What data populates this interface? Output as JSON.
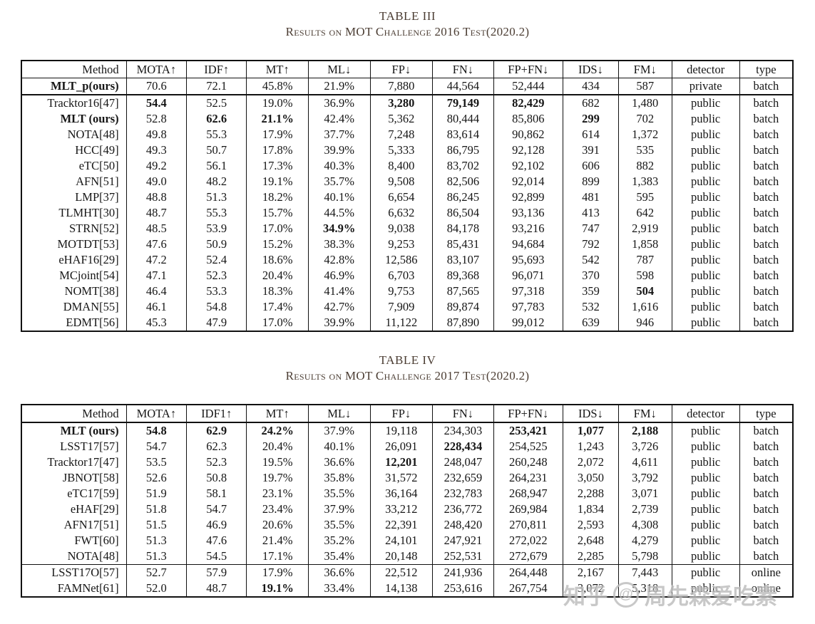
{
  "table3": {
    "title": "TABLE III",
    "caption": "Results on MOT Challenge 2016 Test(2020.2)",
    "columns": [
      "Method",
      "MOTA↑",
      "IDF↑",
      "MT↑",
      "ML↓",
      "FP↓",
      "FN↓",
      "FP+FN↓",
      "IDS↓",
      "FM↓",
      "detector",
      "type"
    ],
    "rows": [
      {
        "cells": [
          "MLT_p(ours)",
          "70.6",
          "72.1",
          "45.8%",
          "21.9%",
          "7,880",
          "44,564",
          "52,444",
          "434",
          "587",
          "private",
          "batch"
        ],
        "bold": [
          0
        ]
      },
      {
        "cells": [
          "Tracktor16[47]",
          "54.4",
          "52.5",
          "19.0%",
          "36.9%",
          "3,280",
          "79,149",
          "82,429",
          "682",
          "1,480",
          "public",
          "batch"
        ],
        "bold": [
          1,
          5,
          6,
          7
        ]
      },
      {
        "cells": [
          "MLT (ours)",
          "52.8",
          "62.6",
          "21.1%",
          "42.4%",
          "5,362",
          "80,444",
          "85,806",
          "299",
          "702",
          "public",
          "batch"
        ],
        "bold": [
          0,
          2,
          3,
          8
        ]
      },
      {
        "cells": [
          "NOTA[48]",
          "49.8",
          "55.3",
          "17.9%",
          "37.7%",
          "7,248",
          "83,614",
          "90,862",
          "614",
          "1,372",
          "public",
          "batch"
        ],
        "bold": []
      },
      {
        "cells": [
          "HCC[49]",
          "49.3",
          "50.7",
          "17.8%",
          "39.9%",
          "5,333",
          "86,795",
          "92,128",
          "391",
          "535",
          "public",
          "batch"
        ],
        "bold": []
      },
      {
        "cells": [
          "eTC[50]",
          "49.2",
          "56.1",
          "17.3%",
          "40.3%",
          "8,400",
          "83,702",
          "92,102",
          "606",
          "882",
          "public",
          "batch"
        ],
        "bold": []
      },
      {
        "cells": [
          "AFN[51]",
          "49.0",
          "48.2",
          "19.1%",
          "35.7%",
          "9,508",
          "82,506",
          "92,014",
          "899",
          "1,383",
          "public",
          "batch"
        ],
        "bold": []
      },
      {
        "cells": [
          "LMP[37]",
          "48.8",
          "51.3",
          "18.2%",
          "40.1%",
          "6,654",
          "86,245",
          "92,899",
          "481",
          "595",
          "public",
          "batch"
        ],
        "bold": []
      },
      {
        "cells": [
          "TLMHT[30]",
          "48.7",
          "55.3",
          "15.7%",
          "44.5%",
          "6,632",
          "86,504",
          "93,136",
          "413",
          "642",
          "public",
          "batch"
        ],
        "bold": []
      },
      {
        "cells": [
          "STRN[52]",
          "48.5",
          "53.9",
          "17.0%",
          "34.9%",
          "9,038",
          "84,178",
          "93,216",
          "747",
          "2,919",
          "public",
          "batch"
        ],
        "bold": [
          4
        ]
      },
      {
        "cells": [
          "MOTDT[53]",
          "47.6",
          "50.9",
          "15.2%",
          "38.3%",
          "9,253",
          "85,431",
          "94,684",
          "792",
          "1,858",
          "public",
          "batch"
        ],
        "bold": []
      },
      {
        "cells": [
          "eHAF16[29]",
          "47.2",
          "52.4",
          "18.6%",
          "42.8%",
          "12,586",
          "83,107",
          "95,693",
          "542",
          "787",
          "public",
          "batch"
        ],
        "bold": []
      },
      {
        "cells": [
          "MCjoint[54]",
          "47.1",
          "52.3",
          "20.4%",
          "46.9%",
          "6,703",
          "89,368",
          "96,071",
          "370",
          "598",
          "public",
          "batch"
        ],
        "bold": []
      },
      {
        "cells": [
          "NOMT[38]",
          "46.4",
          "53.3",
          "18.3%",
          "41.4%",
          "9,753",
          "87,565",
          "97,318",
          "359",
          "504",
          "public",
          "batch"
        ],
        "bold": [
          9
        ]
      },
      {
        "cells": [
          "DMAN[55]",
          "46.1",
          "54.8",
          "17.4%",
          "42.7%",
          "7,909",
          "89,874",
          "97,783",
          "532",
          "1,616",
          "public",
          "batch"
        ],
        "bold": []
      },
      {
        "cells": [
          "EDMT[56]",
          "45.3",
          "47.9",
          "17.0%",
          "39.9%",
          "11,122",
          "87,890",
          "99,012",
          "639",
          "946",
          "public",
          "batch"
        ],
        "bold": []
      }
    ]
  },
  "table4": {
    "title": "TABLE IV",
    "caption": "Results on MOT Challenge 2017 Test(2020.2)",
    "columns": [
      "Method",
      "MOTA↑",
      "IDF1↑",
      "MT↑",
      "ML↓",
      "FP↓",
      "FN↓",
      "FP+FN↓",
      "IDS↓",
      "FM↓",
      "detector",
      "type"
    ],
    "rows": [
      {
        "cells": [
          "MLT (ours)",
          "54.8",
          "62.9",
          "24.2%",
          "37.9%",
          "19,118",
          "234,303",
          "253,421",
          "1,077",
          "2,188",
          "public",
          "batch"
        ],
        "bold": [
          0,
          1,
          2,
          3,
          7,
          8,
          9
        ]
      },
      {
        "cells": [
          "LSST17[57]",
          "54.7",
          "62.3",
          "20.4%",
          "40.1%",
          "26,091",
          "228,434",
          "254,525",
          "1,243",
          "3,726",
          "public",
          "batch"
        ],
        "bold": [
          6
        ]
      },
      {
        "cells": [
          "Tracktor17[47]",
          "53.5",
          "52.3",
          "19.5%",
          "36.6%",
          "12,201",
          "248,047",
          "260,248",
          "2,072",
          "4,611",
          "public",
          "batch"
        ],
        "bold": [
          5
        ]
      },
      {
        "cells": [
          "JBNOT[58]",
          "52.6",
          "50.8",
          "19.7%",
          "35.8%",
          "31,572",
          "232,659",
          "264,231",
          "3,050",
          "3,792",
          "public",
          "batch"
        ],
        "bold": []
      },
      {
        "cells": [
          "eTC17[59]",
          "51.9",
          "58.1",
          "23.1%",
          "35.5%",
          "36,164",
          "232,783",
          "268,947",
          "2,288",
          "3,071",
          "public",
          "batch"
        ],
        "bold": []
      },
      {
        "cells": [
          "eHAF[29]",
          "51.8",
          "54.7",
          "23.4%",
          "37.9%",
          "33,212",
          "236,772",
          "269,984",
          "1,834",
          "2,739",
          "public",
          "batch"
        ],
        "bold": []
      },
      {
        "cells": [
          "AFN17[51]",
          "51.5",
          "46.9",
          "20.6%",
          "35.5%",
          "22,391",
          "248,420",
          "270,811",
          "2,593",
          "4,308",
          "public",
          "batch"
        ],
        "bold": []
      },
      {
        "cells": [
          "FWT[60]",
          "51.3",
          "47.6",
          "21.4%",
          "35.2%",
          "24,101",
          "247,921",
          "272,022",
          "2,648",
          "4,279",
          "public",
          "batch"
        ],
        "bold": []
      },
      {
        "cells": [
          "NOTA[48]",
          "51.3",
          "54.5",
          "17.1%",
          "35.4%",
          "20,148",
          "252,531",
          "272,679",
          "2,285",
          "5,798",
          "public",
          "batch"
        ],
        "bold": [],
        "sep": true
      },
      {
        "cells": [
          "LSST17O[57]",
          "52.7",
          "57.9",
          "17.9%",
          "36.6%",
          "22,512",
          "241,936",
          "264,448",
          "2,167",
          "7,443",
          "public",
          "online"
        ],
        "bold": []
      },
      {
        "cells": [
          "FAMNet[61]",
          "52.0",
          "48.7",
          "19.1%",
          "33.4%",
          "14,138",
          "253,616",
          "267,754",
          "3,072",
          "5,318",
          "public",
          "online"
        ],
        "bold": [
          3
        ]
      }
    ]
  },
  "watermark": {
    "brand": "知乎",
    "at": "@",
    "user": "周先森爱吃素"
  }
}
